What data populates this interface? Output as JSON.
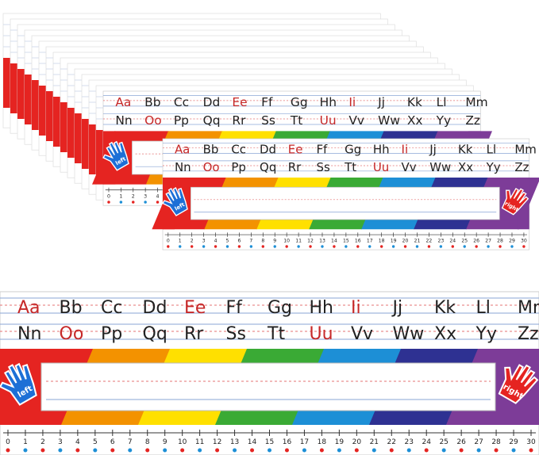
{
  "letters": [
    "Aa",
    "Bb",
    "Cc",
    "Dd",
    "Ee",
    "Ff",
    "Gg",
    "Hh",
    "Ii",
    "Jj",
    "Kk",
    "Ll",
    "Mm",
    "Nn",
    "Oo",
    "Pp",
    "Qq",
    "Rr",
    "Ss",
    "Tt",
    "Uu",
    "Vv",
    "Ww",
    "Xx",
    "Yy",
    "Zz"
  ],
  "accent": {
    "color": "#c62828",
    "letters": [
      0,
      4,
      8,
      14,
      20
    ]
  },
  "numbers": [
    0,
    1,
    2,
    3,
    4,
    5,
    6,
    7,
    8,
    9,
    10,
    11,
    12,
    13,
    14,
    15,
    16,
    17,
    18,
    19,
    20,
    21,
    22,
    23,
    24,
    25,
    26,
    27,
    28,
    29,
    30
  ],
  "hands": {
    "left": "left",
    "right": "right"
  }
}
